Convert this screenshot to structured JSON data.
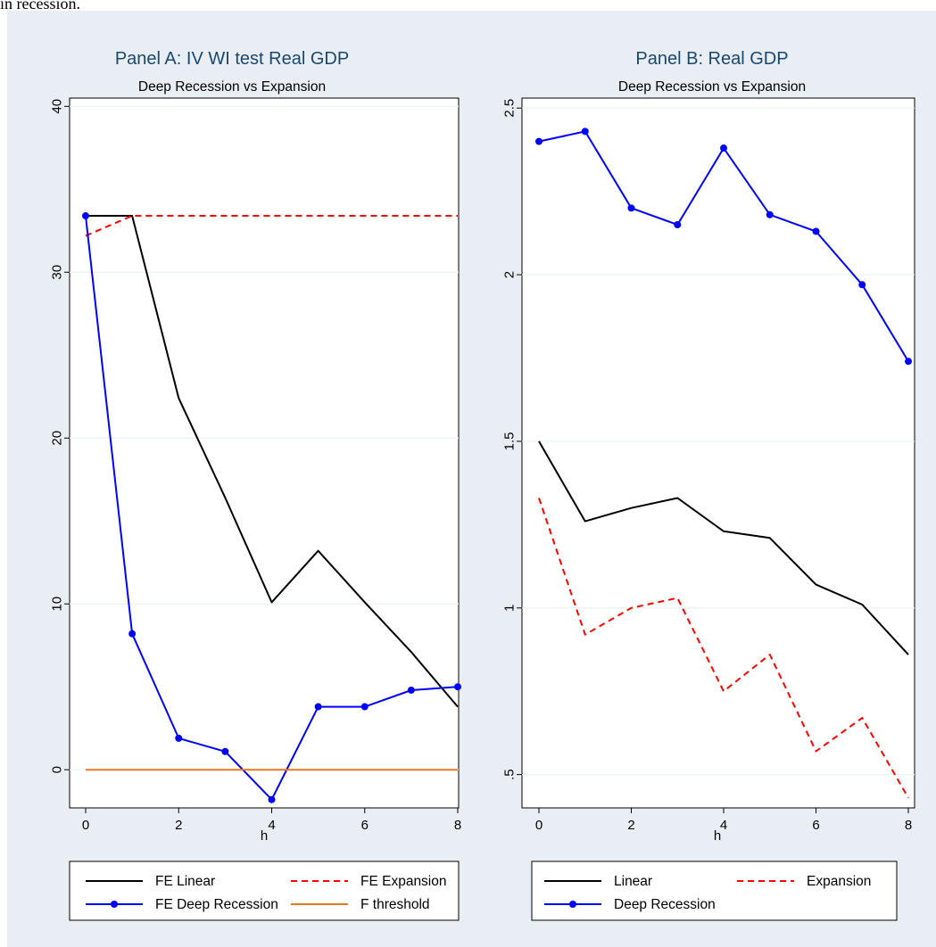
{
  "fragment_text": "in recession.",
  "colors": {
    "background": "#e9eef5",
    "plot_bg": "#ffffff",
    "title": "#1a476f",
    "linear": "#000000",
    "expansion": "#ff0000",
    "deep": "#0000ff",
    "threshold": "#e8781e"
  },
  "chart_data": [
    {
      "type": "line",
      "title": "Panel A: IV WI test Real GDP",
      "subtitle": "Deep Recession vs Expansion",
      "xlabel": "h",
      "ylabel": "",
      "x": [
        0,
        1,
        2,
        3,
        4,
        5,
        6,
        7,
        8
      ],
      "xticks": [
        0,
        2,
        4,
        6,
        8
      ],
      "xtick_labels": [
        "0",
        "2",
        "4",
        "6",
        "8"
      ],
      "xlim": [
        0,
        8
      ],
      "ylim": [
        -2.3,
        40.5
      ],
      "yticks": [
        0,
        10,
        20,
        30,
        40
      ],
      "ytick_labels": [
        "0",
        "10",
        "20",
        "30",
        "40"
      ],
      "grid": true,
      "legend_position": "bottom",
      "series": [
        {
          "name": "FE Linear",
          "color": "#000000",
          "dash": "solid",
          "marker": false,
          "values": [
            33.4,
            33.4,
            33.4,
            22.4,
            16.4,
            10.1,
            13.2,
            10.1,
            7.1,
            3.8
          ],
          "x": [
            0,
            0.01,
            1,
            2,
            3,
            4,
            5,
            6,
            7,
            8
          ]
        },
        {
          "name": "FE Expansion",
          "color": "#ff0000",
          "dash": "dashed",
          "marker": false,
          "values": [
            32.2,
            33.4,
            33.4,
            33.4,
            33.4,
            33.4,
            33.4,
            33.4,
            33.4
          ]
        },
        {
          "name": "FE Deep Recession",
          "color": "#0000ff",
          "dash": "solid",
          "marker": true,
          "values": [
            33.4,
            8.2,
            1.9,
            1.1,
            -1.8,
            3.8,
            3.8,
            4.8,
            5.0
          ]
        },
        {
          "name": "F threshold",
          "color": "#e8781e",
          "dash": "solid",
          "marker": false,
          "values": [
            0,
            0,
            0,
            0,
            0,
            0,
            0,
            0,
            0
          ]
        }
      ]
    },
    {
      "type": "line",
      "title": "Panel B: Real GDP",
      "subtitle": "Deep Recession vs Expansion",
      "xlabel": "h",
      "ylabel": "",
      "x": [
        0,
        1,
        2,
        3,
        4,
        5,
        6,
        7,
        8
      ],
      "xticks": [
        0,
        2,
        4,
        6,
        8
      ],
      "xtick_labels": [
        "0",
        "2",
        "4",
        "6",
        "8"
      ],
      "xlim": [
        0,
        8
      ],
      "ylim": [
        0.4,
        2.53
      ],
      "yticks": [
        0.5,
        1,
        1.5,
        2,
        2.5
      ],
      "ytick_labels": [
        ".5",
        "1",
        "1.5",
        "2",
        "2.5"
      ],
      "grid": true,
      "legend_position": "bottom",
      "series": [
        {
          "name": "Linear",
          "color": "#000000",
          "dash": "solid",
          "marker": false,
          "values": [
            1.5,
            1.26,
            1.3,
            1.33,
            1.23,
            1.21,
            1.07,
            1.01,
            0.86
          ]
        },
        {
          "name": "Expansion",
          "color": "#ff0000",
          "dash": "dashed",
          "marker": false,
          "values": [
            1.33,
            0.92,
            1.0,
            1.03,
            0.75,
            0.86,
            0.57,
            0.67,
            0.43
          ]
        },
        {
          "name": "Deep Recession",
          "color": "#0000ff",
          "dash": "solid",
          "marker": true,
          "values": [
            2.4,
            2.43,
            2.2,
            2.15,
            2.38,
            2.18,
            2.13,
            1.97,
            1.74
          ]
        }
      ]
    }
  ]
}
